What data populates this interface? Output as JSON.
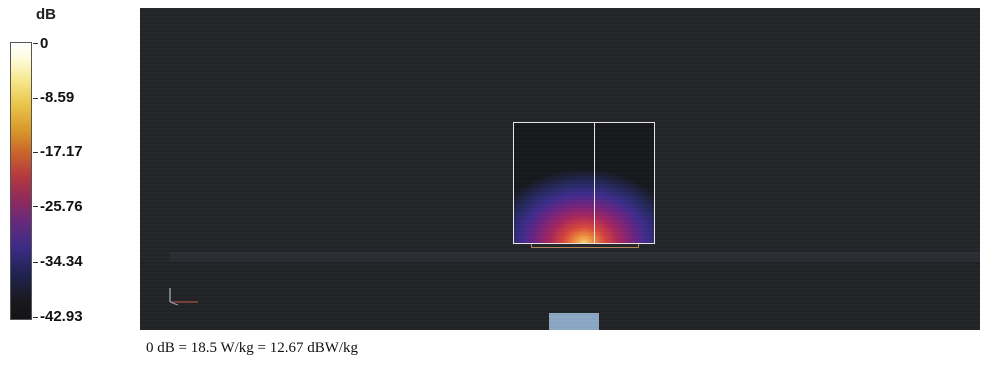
{
  "legend": {
    "unit": "dB",
    "labels": [
      "0",
      "-8.59",
      "-17.17",
      "-25.76",
      "-34.34",
      "-42.93"
    ]
  },
  "caption": "0 dB = 18.5 W/kg = 12.67 dBW/kg",
  "colors": {
    "plot_background": "#232529",
    "box_outline": "#e8e8e8",
    "source_block": "#8aa7c4",
    "scale_top": "#ffffff",
    "scale_mid": "#b53a3e",
    "scale_bottom": "#141416"
  }
}
